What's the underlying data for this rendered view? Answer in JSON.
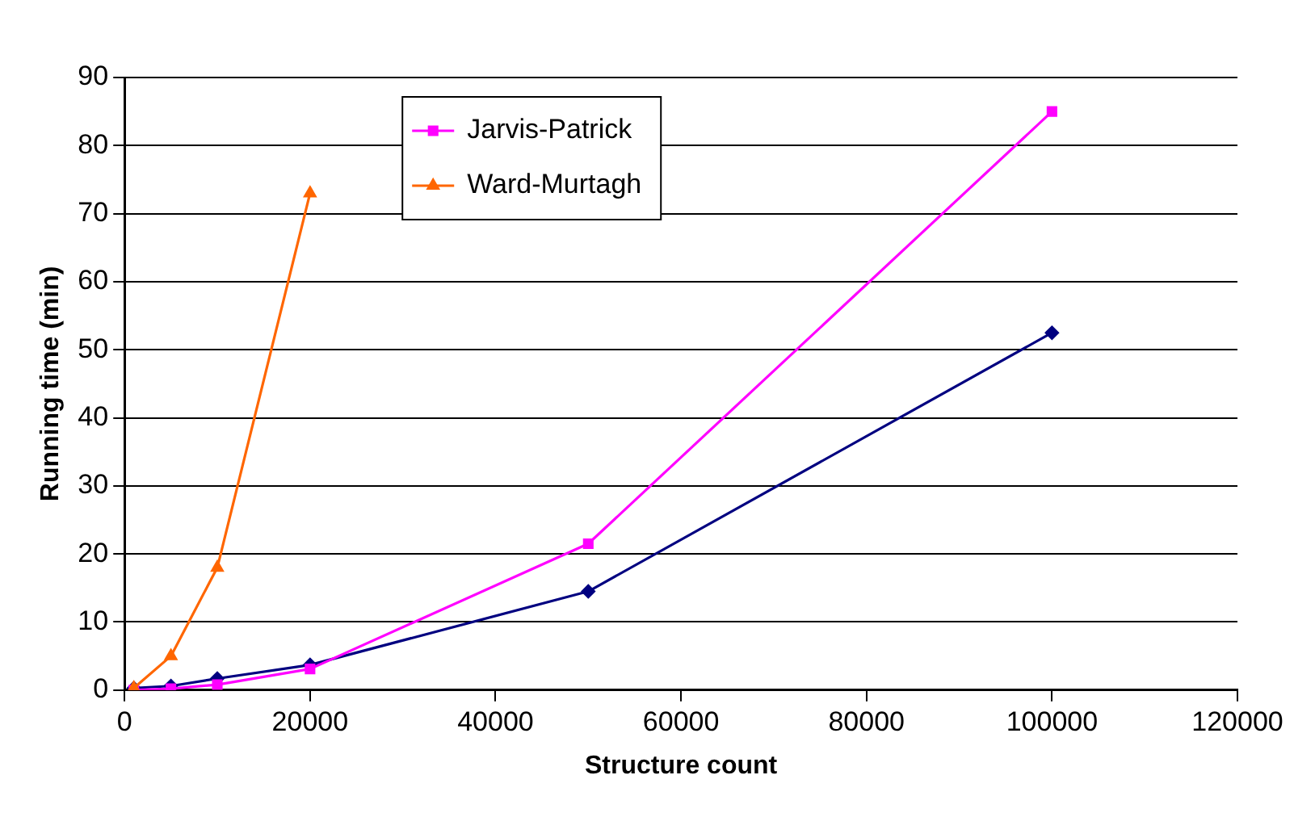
{
  "chart_data": {
    "type": "line",
    "xlabel": "Structure count",
    "ylabel": "Running time (min)",
    "xlim": [
      0,
      120000
    ],
    "xticks": [
      0,
      20000,
      40000,
      60000,
      80000,
      100000,
      120000
    ],
    "ylim": [
      0,
      90
    ],
    "yticks": [
      0,
      10,
      20,
      30,
      40,
      50,
      60,
      70,
      80,
      90
    ],
    "grid": "y",
    "legend": "top left",
    "series": [
      {
        "color": "#000080",
        "marker": "diamond",
        "x": [
          1000,
          5000,
          10000,
          20000,
          50000,
          100000
        ],
        "values": [
          0.3,
          0.6,
          1.7,
          3.7,
          14.5,
          52.5
        ]
      },
      {
        "name": "Jarvis-Patrick",
        "color": "#ff00ff",
        "marker": "square",
        "x": [
          1000,
          5000,
          10000,
          20000,
          50000,
          100000
        ],
        "values": [
          0,
          0.2,
          0.8,
          3.1,
          21.5,
          85
        ]
      },
      {
        "name": "Ward-Murtagh",
        "color": "#ff6600",
        "marker": "triangle",
        "x": [
          1000,
          5000,
          10000,
          20000
        ],
        "values": [
          0.3,
          5,
          18,
          73
        ]
      }
    ]
  }
}
